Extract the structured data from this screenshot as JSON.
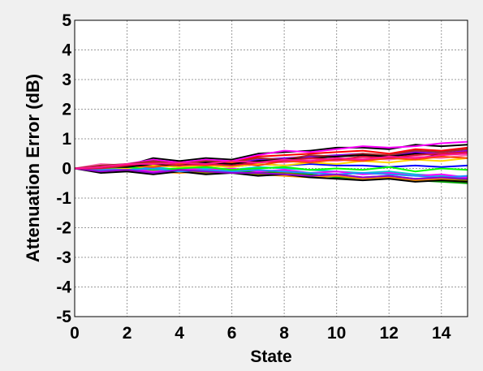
{
  "chart_data": {
    "type": "line",
    "title": "",
    "xlabel": "State",
    "ylabel": "Attenuation Error (dB)",
    "xlim": [
      0,
      15
    ],
    "ylim": [
      -5,
      5
    ],
    "x_ticks": [
      "0",
      "2",
      "4",
      "6",
      "8",
      "10",
      "12",
      "14"
    ],
    "y_ticks": [
      "5",
      "4",
      "3",
      "2",
      "1",
      "0",
      "-1",
      "-2",
      "-3",
      "-4",
      "-5"
    ],
    "grid": true,
    "legend": "none",
    "x": [
      0,
      1,
      2,
      3,
      4,
      5,
      6,
      7,
      8,
      9,
      10,
      11,
      12,
      13,
      14,
      15
    ],
    "series": [
      {
        "color": "#000000",
        "values": [
          0,
          0.1,
          0.1,
          0.35,
          0.25,
          0.35,
          0.3,
          0.5,
          0.55,
          0.6,
          0.7,
          0.7,
          0.65,
          0.8,
          0.75,
          0.8
        ]
      },
      {
        "color": "#ff00ff",
        "values": [
          0,
          0.05,
          0.15,
          0.3,
          0.2,
          0.3,
          0.25,
          0.45,
          0.6,
          0.55,
          0.65,
          0.75,
          0.7,
          0.75,
          0.85,
          0.9
        ]
      },
      {
        "color": "#ff0000",
        "values": [
          0,
          0.1,
          0.05,
          0.25,
          0.15,
          0.25,
          0.2,
          0.4,
          0.45,
          0.5,
          0.55,
          0.6,
          0.5,
          0.65,
          0.6,
          0.7
        ]
      },
      {
        "color": "#0000ff",
        "values": [
          0,
          0.05,
          0.05,
          0.1,
          0.05,
          0.1,
          0.05,
          0.15,
          0.1,
          0.15,
          0.1,
          0.1,
          0.05,
          0.1,
          0.05,
          0.1
        ]
      },
      {
        "color": "#00a000",
        "values": [
          0,
          -0.05,
          0.0,
          -0.05,
          -0.1,
          -0.05,
          -0.1,
          -0.1,
          -0.15,
          -0.2,
          -0.3,
          -0.35,
          -0.3,
          -0.4,
          -0.45,
          -0.5
        ]
      },
      {
        "color": "#00cccc",
        "values": [
          0,
          0.0,
          -0.05,
          0.05,
          -0.05,
          0.0,
          -0.05,
          0.05,
          0.0,
          -0.05,
          -0.1,
          -0.15,
          -0.1,
          -0.2,
          -0.25,
          -0.3
        ]
      },
      {
        "color": "#ff8c00",
        "values": [
          0,
          -0.1,
          -0.05,
          -0.1,
          -0.15,
          -0.1,
          -0.15,
          -0.2,
          -0.25,
          -0.3,
          -0.25,
          -0.35,
          -0.3,
          -0.4,
          -0.35,
          -0.45
        ]
      },
      {
        "color": "#8000ff",
        "values": [
          0,
          0.05,
          0.1,
          0.2,
          0.1,
          0.2,
          0.15,
          0.3,
          0.35,
          0.4,
          0.45,
          0.5,
          0.4,
          0.55,
          0.5,
          0.6
        ]
      },
      {
        "color": "#ff69b4",
        "values": [
          0,
          0.15,
          0.1,
          0.15,
          0.05,
          0.2,
          0.1,
          0.25,
          0.2,
          0.3,
          0.25,
          0.35,
          0.3,
          0.4,
          0.35,
          0.45
        ]
      },
      {
        "color": "#808000",
        "values": [
          0,
          -0.05,
          -0.1,
          -0.15,
          -0.05,
          -0.15,
          -0.1,
          -0.2,
          -0.15,
          -0.25,
          -0.2,
          -0.3,
          -0.25,
          -0.35,
          -0.3,
          -0.4
        ]
      },
      {
        "color": "#000000",
        "values": [
          0,
          -0.15,
          -0.1,
          -0.2,
          -0.1,
          -0.2,
          -0.15,
          -0.25,
          -0.2,
          -0.3,
          -0.35,
          -0.4,
          -0.35,
          -0.45,
          -0.4,
          -0.45
        ]
      },
      {
        "color": "#ff00ff",
        "values": [
          0,
          -0.05,
          0.0,
          -0.1,
          0.0,
          -0.05,
          0.0,
          -0.1,
          -0.05,
          -0.15,
          -0.1,
          -0.2,
          -0.15,
          -0.25,
          -0.2,
          -0.3
        ]
      },
      {
        "color": "#ffd700",
        "values": [
          0,
          0.05,
          0.0,
          0.1,
          0.05,
          0.1,
          0.05,
          0.15,
          0.1,
          0.2,
          0.15,
          0.25,
          0.2,
          0.3,
          0.25,
          0.35
        ]
      },
      {
        "color": "#00ff00",
        "values": [
          0,
          0.0,
          0.05,
          -0.05,
          0.0,
          0.05,
          -0.05,
          0.0,
          0.05,
          -0.05,
          0.0,
          -0.05,
          0.05,
          -0.1,
          0.0,
          -0.05
        ]
      },
      {
        "color": "#a52a2a",
        "values": [
          0,
          0.1,
          0.15,
          0.25,
          0.15,
          0.25,
          0.2,
          0.35,
          0.3,
          0.45,
          0.4,
          0.5,
          0.45,
          0.6,
          0.55,
          0.65
        ]
      },
      {
        "color": "#1e90ff",
        "values": [
          0,
          -0.05,
          -0.05,
          0.0,
          -0.1,
          -0.05,
          -0.1,
          -0.05,
          -0.1,
          -0.15,
          -0.2,
          -0.15,
          -0.2,
          -0.25,
          -0.3,
          -0.25
        ]
      },
      {
        "color": "#ff4500",
        "values": [
          0,
          0.05,
          0.1,
          0.05,
          0.15,
          0.1,
          0.2,
          0.1,
          0.25,
          0.2,
          0.3,
          0.25,
          0.35,
          0.3,
          0.4,
          0.35
        ]
      },
      {
        "color": "#9400d3",
        "values": [
          0,
          -0.1,
          -0.05,
          -0.15,
          -0.05,
          -0.1,
          -0.15,
          -0.15,
          -0.2,
          -0.25,
          -0.2,
          -0.3,
          -0.25,
          -0.35,
          -0.3,
          -0.35
        ]
      },
      {
        "color": "#000000",
        "values": [
          0,
          0.05,
          0.05,
          0.15,
          0.1,
          0.2,
          0.15,
          0.25,
          0.3,
          0.35,
          0.4,
          0.45,
          0.4,
          0.5,
          0.45,
          0.55
        ]
      },
      {
        "color": "#dc143c",
        "values": [
          0,
          0.0,
          0.1,
          0.2,
          0.1,
          0.15,
          0.1,
          0.2,
          0.25,
          0.35,
          0.3,
          0.4,
          0.35,
          0.45,
          0.5,
          0.55
        ]
      },
      {
        "color": "#ff1493",
        "values": [
          0,
          0.05,
          0.15,
          0.15,
          0.2,
          0.15,
          0.25,
          0.2,
          0.3,
          0.25,
          0.35,
          0.3,
          0.4,
          0.35,
          0.45,
          0.5
        ]
      }
    ]
  }
}
